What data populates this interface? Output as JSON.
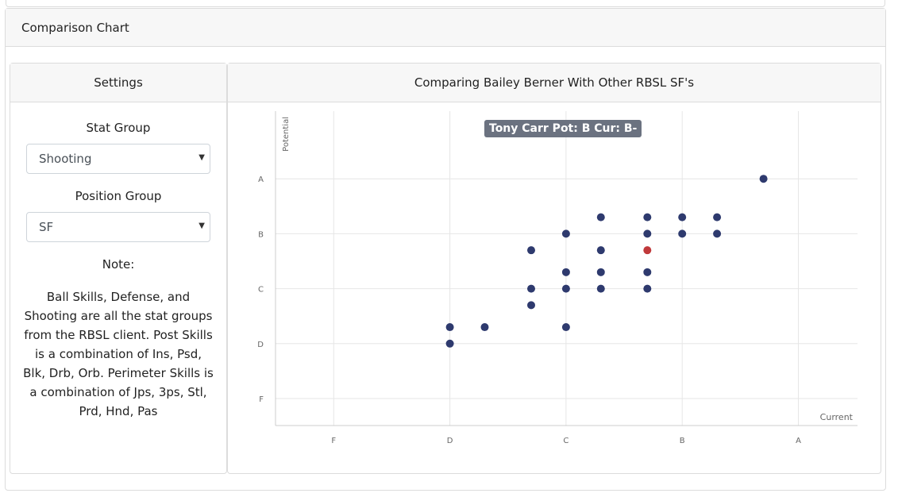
{
  "outer": {
    "title": "Comparison Chart"
  },
  "settings": {
    "header": "Settings",
    "stat_group_label": "Stat Group",
    "stat_group_value": "Shooting",
    "position_group_label": "Position Group",
    "position_group_value": "SF",
    "note_label": "Note:",
    "note_text": "Ball Skills, Defense, and Shooting are all the stat groups from the RBSL client. Post Skills is a combination of Ins, Psd, Blk, Drb, Orb. Perimeter Skills is a combination of Jps, 3ps, Stl, Prd, Hnd, Pas"
  },
  "chart_panel": {
    "header": "Comparing Bailey Berner With Other RBSL SF's",
    "tooltip": "Tony Carr Pot: B Cur: B-"
  },
  "colors": {
    "point": "#2e3a6e",
    "highlight": "#c0393b"
  },
  "chart_data": {
    "type": "scatter",
    "xlabel": "Current",
    "ylabel": "Potential",
    "x_ticks": [
      "F",
      "D",
      "C",
      "B",
      "A"
    ],
    "y_ticks": [
      "F",
      "D",
      "C",
      "B",
      "A"
    ],
    "xlim": [
      0.5,
      5.5
    ],
    "ylim": [
      0.5,
      5.5
    ],
    "grid": true,
    "points": [
      {
        "x": 2.0,
        "y": 2.0
      },
      {
        "x": 2.0,
        "y": 2.3
      },
      {
        "x": 2.3,
        "y": 2.3
      },
      {
        "x": 2.7,
        "y": 2.7
      },
      {
        "x": 2.7,
        "y": 3.0
      },
      {
        "x": 2.7,
        "y": 3.7
      },
      {
        "x": 3.0,
        "y": 2.3
      },
      {
        "x": 3.0,
        "y": 3.0
      },
      {
        "x": 3.0,
        "y": 3.3
      },
      {
        "x": 3.0,
        "y": 4.0
      },
      {
        "x": 3.3,
        "y": 3.0
      },
      {
        "x": 3.3,
        "y": 3.3
      },
      {
        "x": 3.3,
        "y": 3.7
      },
      {
        "x": 3.3,
        "y": 4.3
      },
      {
        "x": 3.7,
        "y": 3.0
      },
      {
        "x": 3.7,
        "y": 3.3
      },
      {
        "x": 3.7,
        "y": 4.0
      },
      {
        "x": 3.7,
        "y": 4.3
      },
      {
        "x": 4.0,
        "y": 4.0
      },
      {
        "x": 4.0,
        "y": 4.3
      },
      {
        "x": 4.3,
        "y": 4.0
      },
      {
        "x": 4.3,
        "y": 4.3
      },
      {
        "x": 4.7,
        "y": 5.0
      }
    ],
    "highlight": {
      "x": 3.7,
      "y": 3.7
    }
  }
}
